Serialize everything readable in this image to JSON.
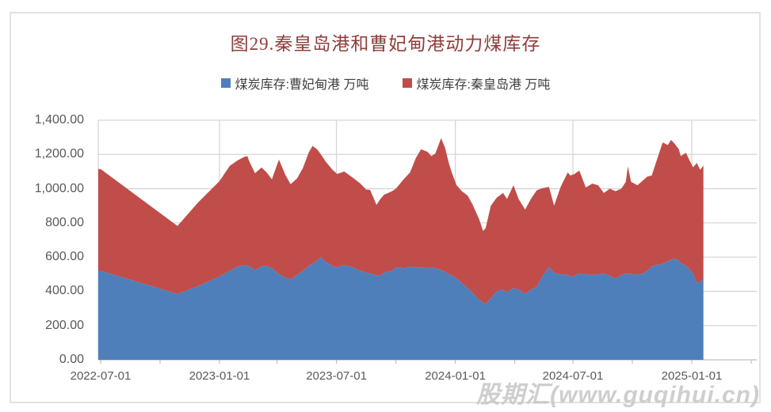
{
  "chart": {
    "title": "图29.秦皇岛港和曹妃甸港动力煤库存",
    "title_color": "#8f3e3c",
    "watermark": "股期汇(www.guqihui.cn)",
    "legend": [
      {
        "label": "煤炭库存:曹妃甸港 万吨",
        "color": "#4e7fba"
      },
      {
        "label": "煤炭库存:秦皇岛港 万吨",
        "color": "#c04d4a"
      }
    ]
  },
  "chart_data": {
    "type": "area",
    "stacked": true,
    "title": "图29.秦皇岛港和曹妃甸港动力煤库存",
    "ylabel": "",
    "xlabel": "",
    "grid": true,
    "legend_position": "top",
    "y_axis": {
      "min": 0,
      "max": 1400,
      "step": 200,
      "tick_labels": [
        "0.00",
        "200.00",
        "400.00",
        "600.00",
        "800.00",
        "1,000.00",
        "1,200.00",
        "1,400.00"
      ]
    },
    "x_axis": {
      "epoch": "2022-07-01",
      "tick_labels": [
        "2022-07-01",
        "2023-01-01",
        "2023-07-01",
        "2024-01-01",
        "2024-07-01",
        "2025-01-01"
      ],
      "tick_days": [
        0,
        184,
        365,
        549,
        731,
        915
      ],
      "minor_tick_days": [
        0,
        92,
        184,
        273,
        365,
        457,
        549,
        641,
        731,
        823,
        915,
        1007
      ]
    },
    "points_days": [
      0,
      119,
      151,
      184,
      200,
      212,
      222,
      227,
      230,
      239,
      249,
      257,
      265,
      276,
      286,
      294,
      304,
      313,
      322,
      328,
      335,
      341,
      349,
      359,
      366,
      377,
      390,
      402,
      411,
      417,
      422,
      427,
      433,
      439,
      445,
      451,
      457,
      469,
      479,
      488,
      496,
      506,
      512,
      518,
      527,
      533,
      539,
      543,
      551,
      559,
      568,
      576,
      586,
      592,
      596,
      604,
      613,
      623,
      629,
      639,
      647,
      657,
      666,
      675,
      684,
      694,
      702,
      712,
      723,
      727,
      733,
      741,
      751,
      761,
      770,
      779,
      788,
      797,
      806,
      813,
      816,
      821,
      831,
      840,
      846,
      853,
      862,
      870,
      878,
      883,
      889,
      895,
      898,
      906,
      911,
      917,
      923,
      928,
      933
    ],
    "series": [
      {
        "name": "煤炭库存:曹妃甸港 万吨",
        "unit": "万吨",
        "color": "#4e7fba",
        "values": [
          520,
          385,
          430,
          487,
          520,
          545,
          552,
          550,
          545,
          525,
          545,
          550,
          535,
          500,
          480,
          470,
          495,
          520,
          548,
          560,
          580,
          600,
          570,
          548,
          540,
          555,
          540,
          520,
          510,
          505,
          500,
          490,
          492,
          510,
          515,
          520,
          541,
          535,
          545,
          540,
          540,
          535,
          540,
          535,
          525,
          515,
          500,
          495,
          475,
          450,
          420,
          390,
          350,
          333,
          325,
          360,
          400,
          410,
          395,
          420,
          410,
          385,
          410,
          425,
          490,
          541,
          508,
          500,
          495,
          485,
          490,
          505,
          500,
          495,
          500,
          505,
          490,
          475,
          495,
          505,
          500,
          500,
          498,
          505,
          520,
          545,
          555,
          560,
          575,
          585,
          590,
          580,
          565,
          550,
          530,
          505,
          450,
          455,
          470
        ]
      },
      {
        "name": "煤炭库存:秦皇岛港 万吨",
        "unit": "万吨",
        "color": "#c04d4a",
        "values": [
          595,
          397,
          490,
          557,
          614,
          620,
          633,
          640,
          615,
          565,
          579,
          545,
          520,
          670,
          600,
          556,
          565,
          600,
          662,
          690,
          650,
          600,
          585,
          562,
          546,
          545,
          525,
          510,
          485,
          488,
          450,
          415,
          448,
          455,
          460,
          465,
          459,
          520,
          550,
          640,
          690,
          680,
          650,
          670,
          770,
          725,
          650,
          605,
          545,
          535,
          540,
          515,
          470,
          419,
          445,
          540,
          547,
          565,
          545,
          600,
          530,
          493,
          530,
          565,
          513,
          469,
          393,
          510,
          600,
          592,
          595,
          600,
          507,
          535,
          520,
          470,
          510,
          510,
          505,
          535,
          630,
          540,
          522,
          545,
          550,
          532,
          625,
          710,
          680,
          700,
          670,
          650,
          625,
          660,
          640,
          620,
          700,
          655,
          665
        ]
      }
    ]
  },
  "colors": {
    "gridline": "#d6d6d6",
    "axis_line": "#bfbfbf",
    "frame": "#e2e2e2",
    "axis_text": "#595959"
  }
}
